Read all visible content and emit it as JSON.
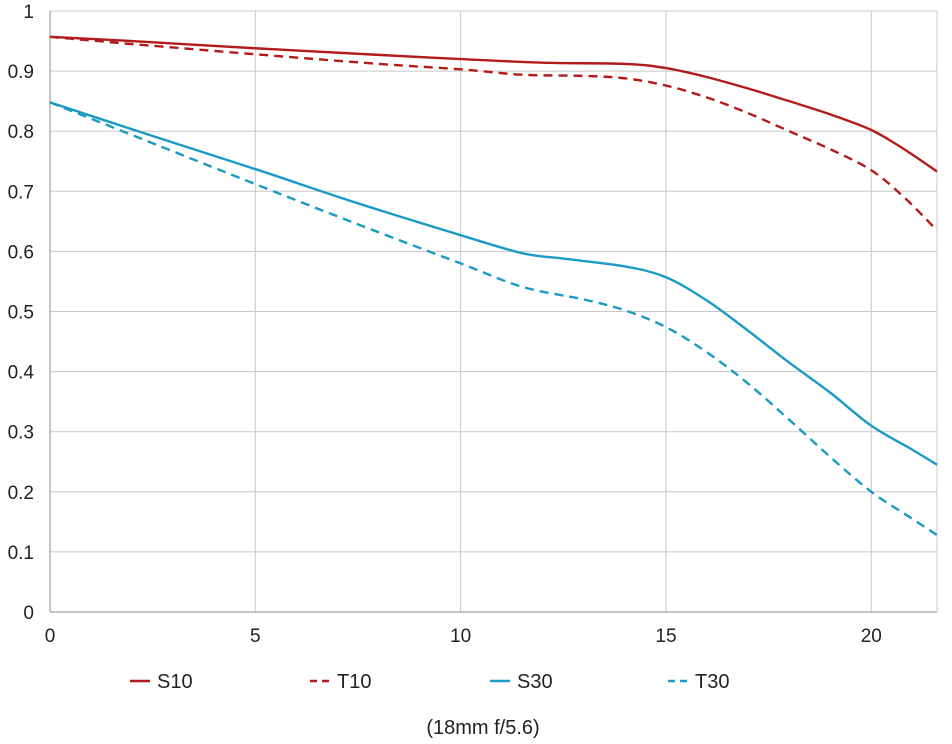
{
  "chart_data": {
    "type": "line",
    "title": "",
    "caption": "(18mm f/5.6)",
    "xlabel": "",
    "ylabel": "",
    "xlim": [
      0,
      21.6
    ],
    "ylim": [
      0,
      1
    ],
    "grid": true,
    "legend_position": "bottom",
    "x_ticks": [
      0,
      5,
      10,
      15,
      20
    ],
    "x_tick_labels": [
      "0",
      "5",
      "10",
      "15",
      "20"
    ],
    "y_ticks": [
      0,
      0.1,
      0.2,
      0.3,
      0.4,
      0.5,
      0.6,
      0.7,
      0.8,
      0.9,
      1
    ],
    "y_tick_labels": [
      "0",
      "0.1",
      "0.2",
      "0.3",
      "0.4",
      "0.5",
      "0.6",
      "0.7",
      "0.8",
      "0.9",
      "1"
    ],
    "series": [
      {
        "name": "S10",
        "color": "#b31b1b",
        "dash": "solid",
        "points": [
          [
            0,
            0.957
          ],
          [
            2,
            0.95
          ],
          [
            5,
            0.938
          ],
          [
            8,
            0.927
          ],
          [
            10,
            0.92
          ],
          [
            12,
            0.914
          ],
          [
            14,
            0.912
          ],
          [
            15,
            0.905
          ],
          [
            16,
            0.89
          ],
          [
            17,
            0.871
          ],
          [
            18,
            0.85
          ],
          [
            19,
            0.828
          ],
          [
            20,
            0.802
          ],
          [
            20.8,
            0.77
          ],
          [
            21.6,
            0.733
          ]
        ]
      },
      {
        "name": "T10",
        "color": "#b31b1b",
        "dash": "dashed",
        "points": [
          [
            0,
            0.957
          ],
          [
            2,
            0.945
          ],
          [
            5,
            0.928
          ],
          [
            8,
            0.912
          ],
          [
            10,
            0.903
          ],
          [
            11.5,
            0.894
          ],
          [
            13,
            0.892
          ],
          [
            14,
            0.888
          ],
          [
            15,
            0.876
          ],
          [
            16,
            0.856
          ],
          [
            17,
            0.83
          ],
          [
            18,
            0.8
          ],
          [
            19,
            0.77
          ],
          [
            20,
            0.735
          ],
          [
            20.8,
            0.69
          ],
          [
            21.6,
            0.635
          ]
        ]
      },
      {
        "name": "S30",
        "color": "#1a9bc4",
        "dash": "solid",
        "points": [
          [
            0,
            0.848
          ],
          [
            2.5,
            0.792
          ],
          [
            5,
            0.737
          ],
          [
            7.5,
            0.68
          ],
          [
            10,
            0.627
          ],
          [
            11.5,
            0.597
          ],
          [
            12.5,
            0.588
          ],
          [
            14,
            0.575
          ],
          [
            15,
            0.557
          ],
          [
            16,
            0.518
          ],
          [
            17,
            0.468
          ],
          [
            18,
            0.415
          ],
          [
            19,
            0.365
          ],
          [
            20,
            0.31
          ],
          [
            21,
            0.27
          ],
          [
            21.6,
            0.245
          ]
        ]
      },
      {
        "name": "T30",
        "color": "#1a9bc4",
        "dash": "dashed",
        "points": [
          [
            0,
            0.848
          ],
          [
            2.5,
            0.78
          ],
          [
            5,
            0.712
          ],
          [
            7.5,
            0.645
          ],
          [
            10,
            0.58
          ],
          [
            11.5,
            0.541
          ],
          [
            13,
            0.52
          ],
          [
            14,
            0.502
          ],
          [
            15,
            0.474
          ],
          [
            16,
            0.432
          ],
          [
            17,
            0.38
          ],
          [
            18,
            0.32
          ],
          [
            19,
            0.258
          ],
          [
            20,
            0.2
          ],
          [
            21,
            0.155
          ],
          [
            21.6,
            0.128
          ]
        ]
      }
    ]
  }
}
